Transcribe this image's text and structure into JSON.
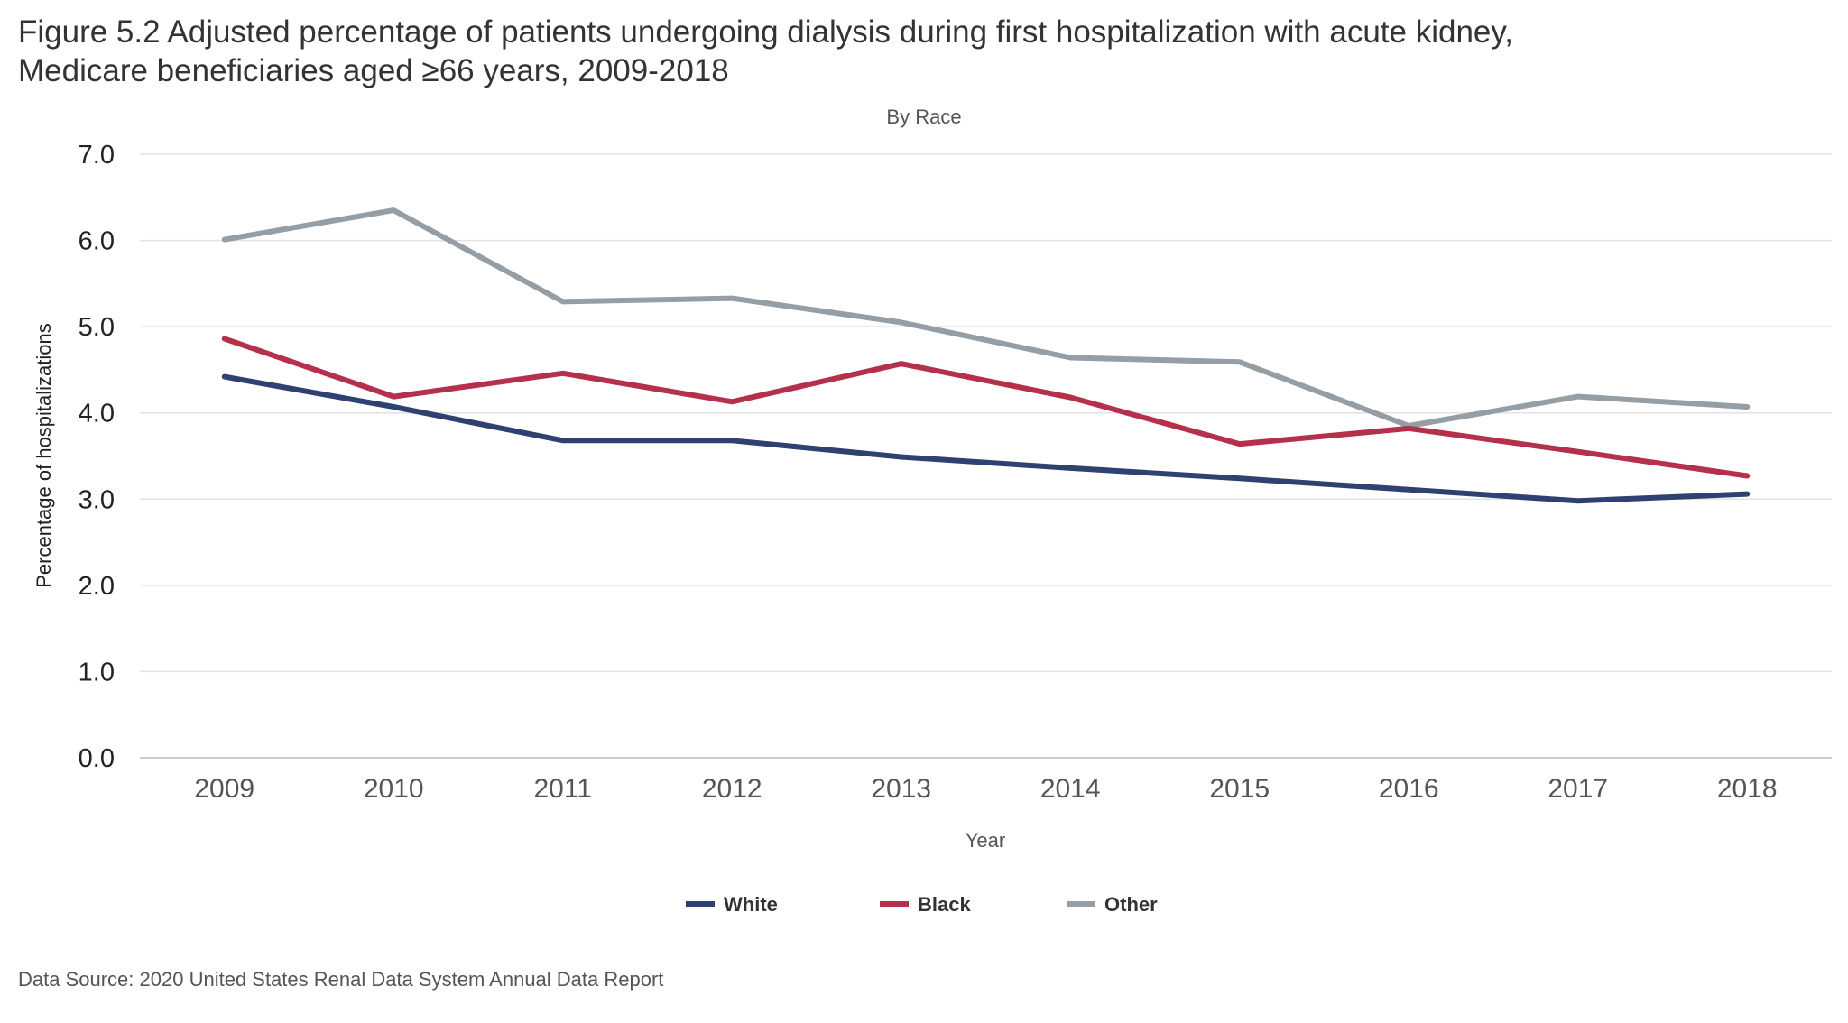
{
  "figure": {
    "title": "Figure 5.2 Adjusted percentage of patients undergoing dialysis during first hospitalization with acute kidney,\nMedicare beneficiaries aged ≥66 years, 2009-2018",
    "source": "Data Source: 2020 United States Renal Data System Annual Data Report"
  },
  "chart_data": {
    "type": "line",
    "subtitle": "By Race",
    "xlabel": "Year",
    "ylabel": "Percentage of hospitalizations",
    "x": [
      "2009",
      "2010",
      "2011",
      "2012",
      "2013",
      "2014",
      "2015",
      "2016",
      "2017",
      "2018"
    ],
    "ylim": [
      0,
      7
    ],
    "yticks": [
      "0.0",
      "1.0",
      "2.0",
      "3.0",
      "4.0",
      "5.0",
      "6.0",
      "7.0"
    ],
    "grid": true,
    "legend_position": "bottom",
    "series": [
      {
        "name": "White",
        "color": "#2e4170",
        "values": [
          4.42,
          4.07,
          3.68,
          3.68,
          3.49,
          3.36,
          3.24,
          3.11,
          2.98,
          3.06
        ]
      },
      {
        "name": "Black",
        "color": "#b5304b",
        "values": [
          4.86,
          4.19,
          4.46,
          4.13,
          4.57,
          4.18,
          3.64,
          3.82,
          3.55,
          3.27
        ]
      },
      {
        "name": "Other",
        "color": "#959da5",
        "values": [
          6.01,
          6.35,
          5.29,
          5.33,
          5.05,
          4.64,
          4.59,
          3.85,
          4.19,
          4.07
        ]
      }
    ]
  }
}
